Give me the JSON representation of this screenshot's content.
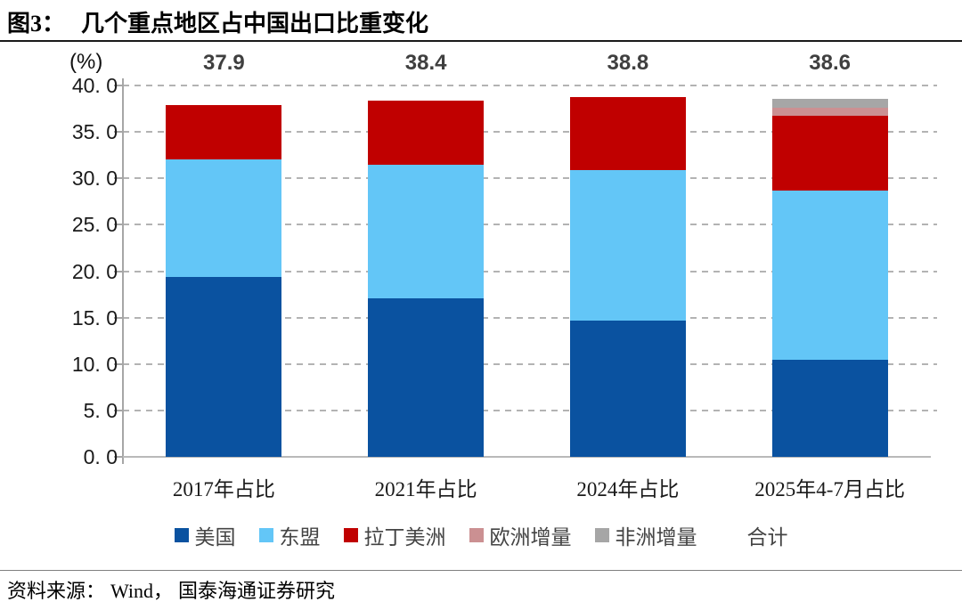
{
  "title": {
    "prefix": "图3：",
    "text": "几个重点地区占中国出口比重变化"
  },
  "chart_data": {
    "type": "bar",
    "stacked": true,
    "unit_label": "(%)",
    "categories": [
      "2017年占比",
      "2021年占比",
      "2024年占比",
      "2025年4-7月占比"
    ],
    "series": [
      {
        "key": "us",
        "name": "美国",
        "color": "#0a52a0",
        "values": [
          19.4,
          17.1,
          14.7,
          10.5
        ]
      },
      {
        "key": "asean",
        "name": "东盟",
        "color": "#63c6f7",
        "values": [
          12.6,
          14.4,
          16.2,
          18.2
        ]
      },
      {
        "key": "latin-america",
        "name": "拉丁美洲",
        "color": "#c00000",
        "values": [
          5.9,
          6.9,
          7.9,
          8.0
        ]
      },
      {
        "key": "europe-increment",
        "name": "欧洲增量",
        "color": "#cb9092",
        "values": [
          0,
          0,
          0,
          0.9
        ]
      },
      {
        "key": "africa-increment",
        "name": "非洲增量",
        "color": "#a6a6a6",
        "values": [
          0,
          0,
          0,
          1.0
        ]
      }
    ],
    "totals": [
      "37.9",
      "38.4",
      "38.8",
      "38.6"
    ],
    "total_label": "合计",
    "ylim": [
      0,
      40
    ],
    "ytick_step": 5,
    "ytick_labels": [
      "0. 0",
      "5. 0",
      "10. 0",
      "15. 0",
      "20. 0",
      "25. 0",
      "30. 0",
      "35. 0",
      "40. 0"
    ],
    "grid": "dashed",
    "legend_position": "bottom"
  },
  "source": {
    "label": "资料来源：",
    "wind": "Wind，",
    "underlined": "国泰海通",
    "rest": "证券研究"
  }
}
